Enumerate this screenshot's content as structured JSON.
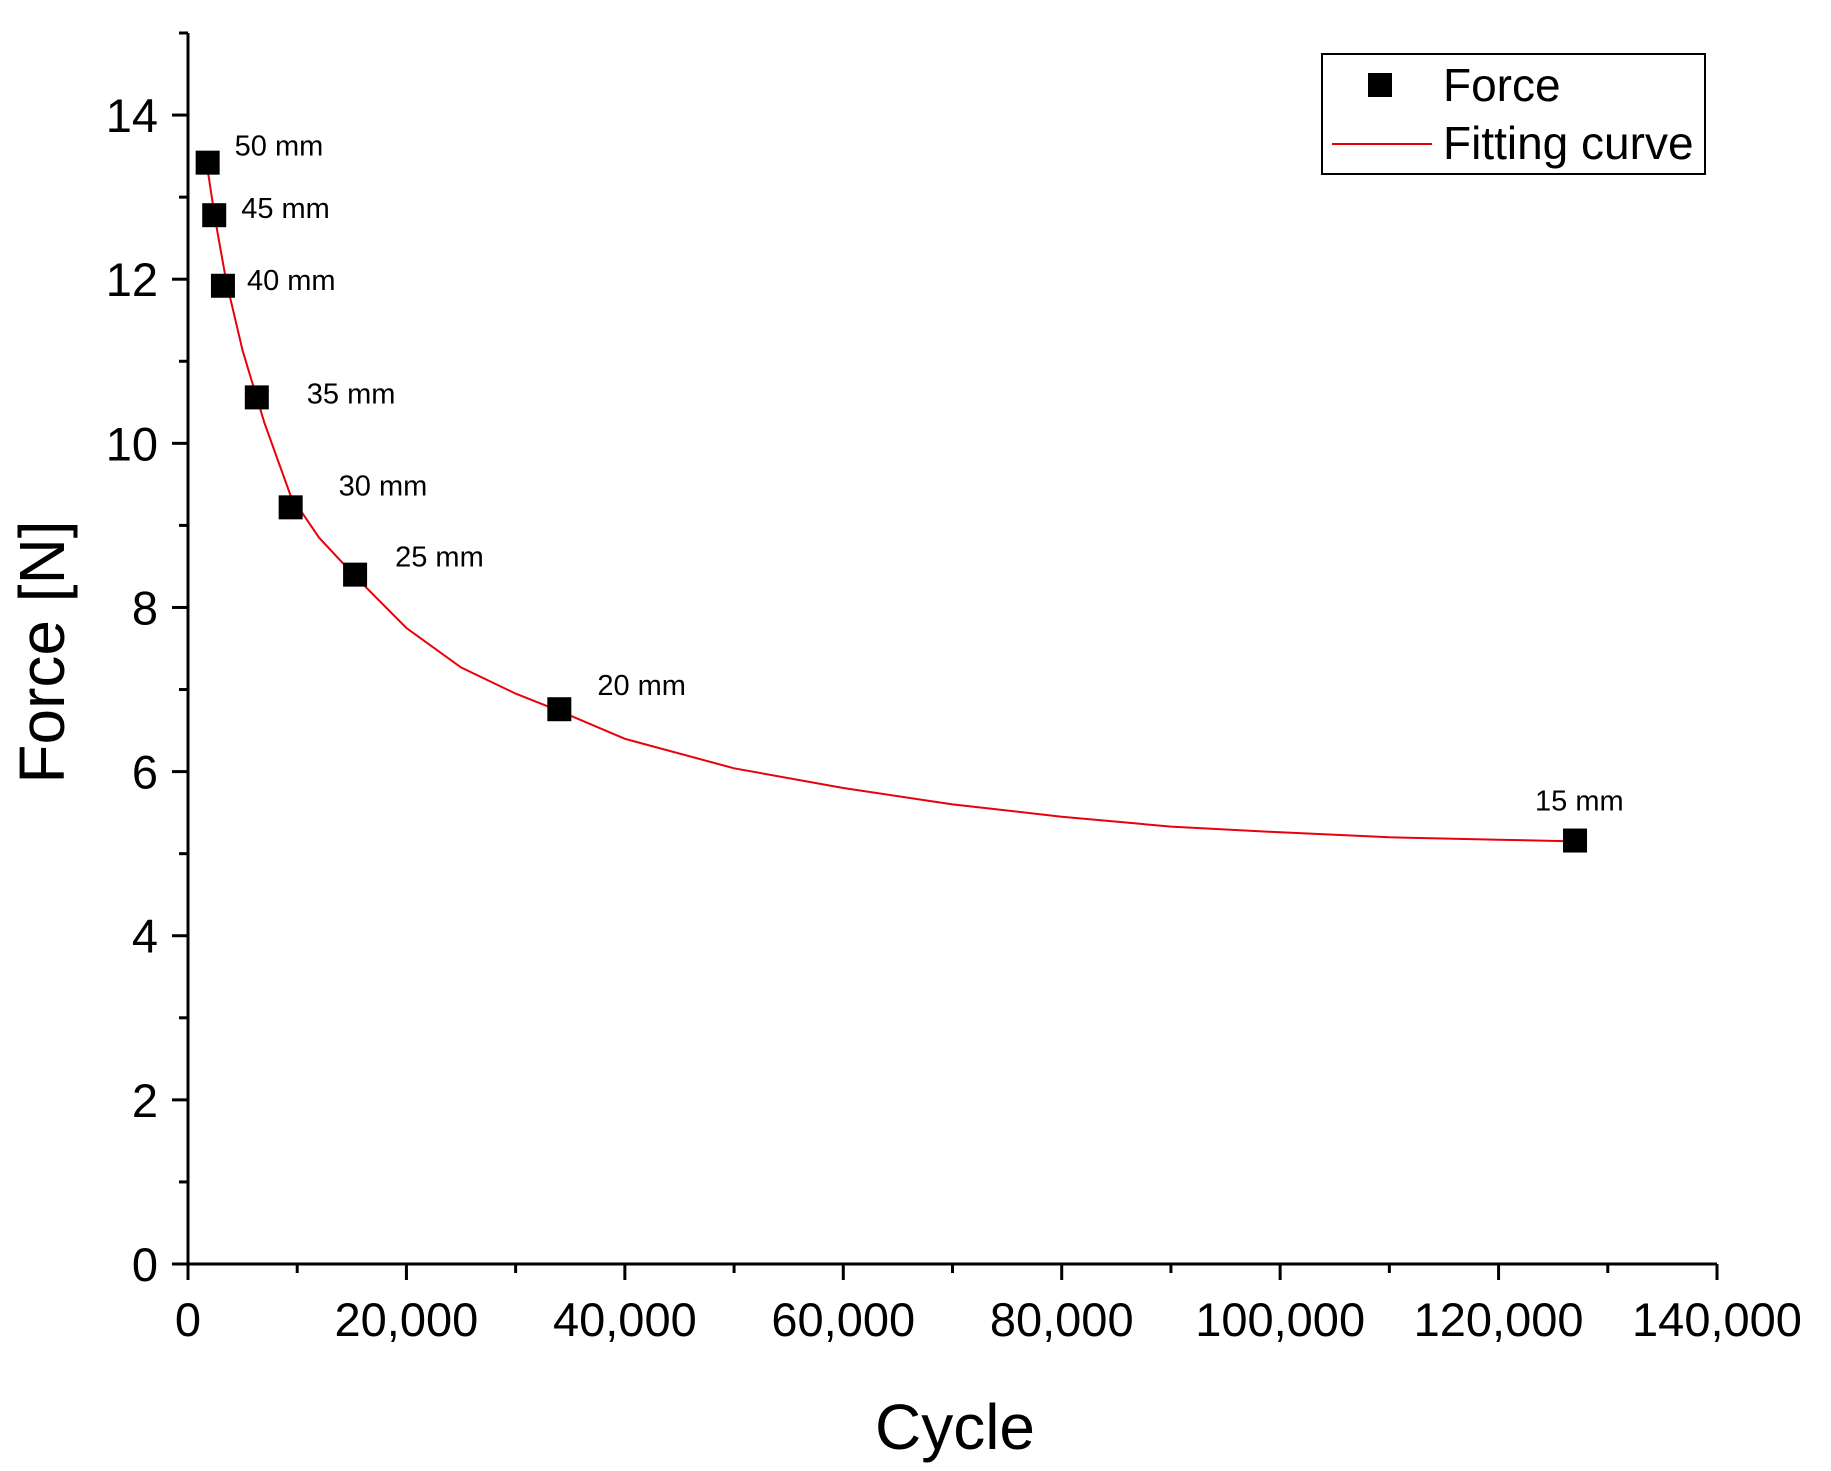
{
  "chart_data": {
    "type": "scatter",
    "xlabel": "Cycle",
    "ylabel": "Force [N]",
    "xlim": [
      0,
      140000
    ],
    "ylim": [
      0,
      15
    ],
    "x_ticks": [
      0,
      20000,
      40000,
      60000,
      80000,
      100000,
      120000,
      140000
    ],
    "x_tick_labels": [
      "0",
      "20,000",
      "40,000",
      "60,000",
      "80,000",
      "100,000",
      "120,000",
      "140,000"
    ],
    "y_ticks": [
      0,
      2,
      4,
      6,
      8,
      10,
      12,
      14
    ],
    "y_tick_labels": [
      "0",
      "2",
      "4",
      "6",
      "8",
      "10",
      "12",
      "14"
    ],
    "grid": false,
    "legend_position": "top-right",
    "series": [
      {
        "name": "Force",
        "kind": "scatter",
        "color": "#000000",
        "marker": "square",
        "x": [
          1800,
          2400,
          3200,
          6300,
          9400,
          15300,
          34000,
          127000
        ],
        "y": [
          13.42,
          12.78,
          11.92,
          10.56,
          9.22,
          8.4,
          6.76,
          5.16
        ],
        "labels": [
          "50 mm",
          "45 mm",
          "40 mm",
          "35 mm",
          "30 mm",
          "25 mm",
          "20 mm",
          "15 mm"
        ]
      },
      {
        "name": "Fitting curve",
        "kind": "line",
        "color": "#e8000b",
        "x": [
          1800,
          2500,
          3500,
          5000,
          7000,
          9400,
          12000,
          15300,
          20000,
          25000,
          30000,
          34000,
          40000,
          50000,
          60000,
          70000,
          80000,
          90000,
          100000,
          110000,
          120000,
          127000
        ],
        "y": [
          13.33,
          12.72,
          11.98,
          11.13,
          10.25,
          9.36,
          8.85,
          8.38,
          7.75,
          7.27,
          6.95,
          6.74,
          6.4,
          6.04,
          5.8,
          5.6,
          5.45,
          5.33,
          5.26,
          5.2,
          5.17,
          5.15
        ]
      }
    ]
  }
}
